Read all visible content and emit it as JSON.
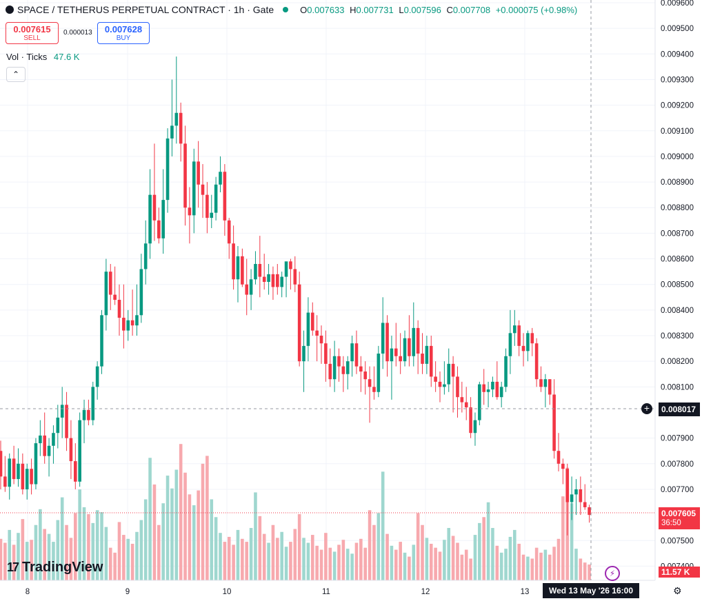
{
  "header": {
    "symbol": "SPACE / TETHERUS PERPETUAL CONTRACT · 1h · Gate",
    "o": "0.007633",
    "h": "0.007731",
    "l": "0.007596",
    "c": "0.007708",
    "change": "+0.000075 (+0.98%)"
  },
  "trade": {
    "sell_price": "0.007615",
    "sell_label": "SELL",
    "spread": "0.000013",
    "buy_price": "0.007628",
    "buy_label": "BUY"
  },
  "volume_indicator": {
    "label": "Vol · Ticks",
    "value": "47.6 K"
  },
  "collapse_icon": "chevron-up-icon",
  "logo_text": "TradingView",
  "crosshair": {
    "price": "0.008017",
    "time": "Wed 13 May '26   16:00"
  },
  "last_price": {
    "price": "0.007605",
    "countdown": "36:50"
  },
  "volume_label": "11.57 K",
  "colors": {
    "up": "#089981",
    "down": "#f23645",
    "vol_up": "#9fd7cf",
    "vol_down": "#f7a9ae"
  },
  "chart_data": {
    "type": "candlestick",
    "timeframe": "1h",
    "y_axis": {
      "min": 0.00735,
      "max": 0.0096,
      "ticks": [
        "0.009600",
        "0.009500",
        "0.009400",
        "0.009300",
        "0.009200",
        "0.009100",
        "0.009000",
        "0.008900",
        "0.008800",
        "0.008700",
        "0.008600",
        "0.008500",
        "0.008400",
        "0.008300",
        "0.008200",
        "0.008100",
        "0.007900",
        "0.007800",
        "0.007700",
        "0.007500",
        "0.007400"
      ]
    },
    "x_axis": {
      "ticks": [
        "8",
        "9",
        "10",
        "11",
        "12",
        "13"
      ]
    },
    "volume_max": 15000,
    "candles": [
      [
        0.00785,
        0.00789,
        0.0077,
        0.00775
      ],
      [
        0.00775,
        0.00783,
        0.00769,
        0.00771
      ],
      [
        0.00771,
        0.00784,
        0.00766,
        0.00782
      ],
      [
        0.00782,
        0.00787,
        0.00772,
        0.00774
      ],
      [
        0.00774,
        0.00786,
        0.00771,
        0.0078
      ],
      [
        0.0078,
        0.00784,
        0.00768,
        0.0077
      ],
      [
        0.0077,
        0.0078,
        0.00766,
        0.00778
      ],
      [
        0.00778,
        0.00782,
        0.00768,
        0.00772
      ],
      [
        0.00772,
        0.0079,
        0.0077,
        0.00788
      ],
      [
        0.00788,
        0.00797,
        0.00783,
        0.00791
      ],
      [
        0.00791,
        0.008,
        0.0078,
        0.00783
      ],
      [
        0.00783,
        0.0079,
        0.00775,
        0.00787
      ],
      [
        0.00787,
        0.00795,
        0.0078,
        0.00792
      ],
      [
        0.00792,
        0.00803,
        0.00786,
        0.00798
      ],
      [
        0.00798,
        0.0081,
        0.0079,
        0.00803
      ],
      [
        0.00803,
        0.00808,
        0.00785,
        0.0079
      ],
      [
        0.0079,
        0.00797,
        0.00774,
        0.00781
      ],
      [
        0.00781,
        0.00788,
        0.0077,
        0.00773
      ],
      [
        0.00773,
        0.008,
        0.00771,
        0.00797
      ],
      [
        0.00797,
        0.00805,
        0.00788,
        0.00801
      ],
      [
        0.00801,
        0.00805,
        0.00795,
        0.00797
      ],
      [
        0.00797,
        0.00812,
        0.00795,
        0.0081
      ],
      [
        0.0081,
        0.0082,
        0.00805,
        0.00818
      ],
      [
        0.00818,
        0.0084,
        0.00815,
        0.00838
      ],
      [
        0.00838,
        0.0086,
        0.00832,
        0.00855
      ],
      [
        0.00855,
        0.00858,
        0.0084,
        0.00846
      ],
      [
        0.00846,
        0.00857,
        0.00842,
        0.00844
      ],
      [
        0.00844,
        0.0085,
        0.0083,
        0.00837
      ],
      [
        0.00837,
        0.0085,
        0.00825,
        0.00832
      ],
      [
        0.00832,
        0.0084,
        0.00828,
        0.00836
      ],
      [
        0.00836,
        0.00848,
        0.0083,
        0.00834
      ],
      [
        0.00834,
        0.0085,
        0.0083,
        0.00838
      ],
      [
        0.00838,
        0.00862,
        0.00835,
        0.00856
      ],
      [
        0.00856,
        0.00875,
        0.0085,
        0.00866
      ],
      [
        0.00866,
        0.00895,
        0.0086,
        0.00885
      ],
      [
        0.00885,
        0.00905,
        0.00867,
        0.00875
      ],
      [
        0.00875,
        0.0088,
        0.00866,
        0.00868
      ],
      [
        0.00868,
        0.00895,
        0.00862,
        0.00883
      ],
      [
        0.00883,
        0.00911,
        0.00878,
        0.00907
      ],
      [
        0.00907,
        0.0093,
        0.009,
        0.00912
      ],
      [
        0.00912,
        0.00939,
        0.00905,
        0.00917
      ],
      [
        0.00917,
        0.00921,
        0.00898,
        0.00905
      ],
      [
        0.00905,
        0.00912,
        0.00873,
        0.0088
      ],
      [
        0.0088,
        0.00888,
        0.00866,
        0.00877
      ],
      [
        0.00877,
        0.00903,
        0.0087,
        0.00898
      ],
      [
        0.00898,
        0.00906,
        0.0088,
        0.00889
      ],
      [
        0.00889,
        0.00897,
        0.00876,
        0.00885
      ],
      [
        0.00885,
        0.0089,
        0.0087,
        0.00876
      ],
      [
        0.00876,
        0.00885,
        0.00872,
        0.00878
      ],
      [
        0.00878,
        0.00892,
        0.00875,
        0.00889
      ],
      [
        0.00889,
        0.009,
        0.00886,
        0.00894
      ],
      [
        0.00894,
        0.00897,
        0.00869,
        0.00875
      ],
      [
        0.00875,
        0.00876,
        0.0086,
        0.00866
      ],
      [
        0.00866,
        0.00873,
        0.00848,
        0.00852
      ],
      [
        0.00852,
        0.00865,
        0.00843,
        0.00861
      ],
      [
        0.00861,
        0.00864,
        0.00849,
        0.0085
      ],
      [
        0.0085,
        0.0086,
        0.00838,
        0.00846
      ],
      [
        0.00846,
        0.00856,
        0.0084,
        0.00852
      ],
      [
        0.00852,
        0.00863,
        0.0085,
        0.00858
      ],
      [
        0.00858,
        0.00869,
        0.00845,
        0.00853
      ],
      [
        0.00853,
        0.00862,
        0.00848,
        0.00851
      ],
      [
        0.00851,
        0.00858,
        0.00846,
        0.00854
      ],
      [
        0.00854,
        0.00857,
        0.00844,
        0.00849
      ],
      [
        0.00854,
        0.00858,
        0.00846,
        0.00849
      ],
      [
        0.00849,
        0.00855,
        0.00845,
        0.00853
      ],
      [
        0.00853,
        0.00858,
        0.00845,
        0.00859
      ],
      [
        0.00859,
        0.0086,
        0.00848,
        0.00856
      ],
      [
        0.00856,
        0.00861,
        0.00847,
        0.0085
      ],
      [
        0.0085,
        0.00855,
        0.00818,
        0.0082
      ],
      [
        0.0082,
        0.00832,
        0.00808,
        0.00826
      ],
      [
        0.00826,
        0.00845,
        0.0082,
        0.00839
      ],
      [
        0.00839,
        0.00843,
        0.0083,
        0.00832
      ],
      [
        0.00832,
        0.00838,
        0.0082,
        0.0083
      ],
      [
        0.0083,
        0.00834,
        0.00819,
        0.00827
      ],
      [
        0.00827,
        0.00832,
        0.00812,
        0.00819
      ],
      [
        0.00819,
        0.00825,
        0.0081,
        0.00813
      ],
      [
        0.00813,
        0.00828,
        0.00808,
        0.00822
      ],
      [
        0.00822,
        0.00825,
        0.00812,
        0.00818
      ],
      [
        0.00818,
        0.00822,
        0.00808,
        0.00815
      ],
      [
        0.00815,
        0.00822,
        0.00809,
        0.0082
      ],
      [
        0.0082,
        0.0083,
        0.00814,
        0.00827
      ],
      [
        0.00827,
        0.00832,
        0.00815,
        0.00818
      ],
      [
        0.00818,
        0.00822,
        0.00808,
        0.00816
      ],
      [
        0.00816,
        0.0082,
        0.00807,
        0.00813
      ],
      [
        0.00813,
        0.00818,
        0.00796,
        0.0081
      ],
      [
        0.0081,
        0.00818,
        0.00805,
        0.00808
      ],
      [
        0.00808,
        0.00826,
        0.00806,
        0.00823
      ],
      [
        0.00823,
        0.00845,
        0.00817,
        0.00835
      ],
      [
        0.00835,
        0.00838,
        0.00814,
        0.0082
      ],
      [
        0.0082,
        0.0083,
        0.00805,
        0.00825
      ],
      [
        0.00825,
        0.00835,
        0.00818,
        0.00822
      ],
      [
        0.00822,
        0.00831,
        0.00815,
        0.0082
      ],
      [
        0.0082,
        0.00832,
        0.00818,
        0.00829
      ],
      [
        0.00829,
        0.00838,
        0.00818,
        0.00822
      ],
      [
        0.00822,
        0.00843,
        0.00818,
        0.00833
      ],
      [
        0.00833,
        0.00836,
        0.00815,
        0.00823
      ],
      [
        0.00823,
        0.00831,
        0.00815,
        0.00819
      ],
      [
        0.00819,
        0.0083,
        0.00815,
        0.00826
      ],
      [
        0.00826,
        0.0083,
        0.0081,
        0.00814
      ],
      [
        0.00814,
        0.0082,
        0.00808,
        0.00812
      ],
      [
        0.00812,
        0.00816,
        0.00804,
        0.0081
      ],
      [
        0.0081,
        0.0082,
        0.00807,
        0.00811
      ],
      [
        0.00811,
        0.00825,
        0.00808,
        0.00819
      ],
      [
        0.00819,
        0.00822,
        0.008,
        0.00814
      ],
      [
        0.00814,
        0.00818,
        0.00798,
        0.00806
      ],
      [
        0.00806,
        0.00812,
        0.008,
        0.00804
      ],
      [
        0.00804,
        0.0081,
        0.00797,
        0.00802
      ],
      [
        0.00802,
        0.00806,
        0.0079,
        0.00792
      ],
      [
        0.00792,
        0.008,
        0.00787,
        0.00797
      ],
      [
        0.00797,
        0.00812,
        0.00795,
        0.00811
      ],
      [
        0.00811,
        0.00817,
        0.00803,
        0.00808
      ],
      [
        0.00808,
        0.00812,
        0.00802,
        0.00809
      ],
      [
        0.00809,
        0.00814,
        0.00806,
        0.00812
      ],
      [
        0.00812,
        0.0082,
        0.00805,
        0.00806
      ],
      [
        0.00806,
        0.00812,
        0.00802,
        0.0081
      ],
      [
        0.0081,
        0.00825,
        0.00808,
        0.00822
      ],
      [
        0.00822,
        0.0084,
        0.00815,
        0.00831
      ],
      [
        0.00831,
        0.0084,
        0.00826,
        0.00834
      ],
      [
        0.00834,
        0.00836,
        0.00822,
        0.00826
      ],
      [
        0.00826,
        0.00831,
        0.00818,
        0.00824
      ],
      [
        0.00824,
        0.00832,
        0.0082,
        0.00831
      ],
      [
        0.00831,
        0.00833,
        0.00822,
        0.00827
      ],
      [
        0.00827,
        0.00829,
        0.0081,
        0.00813
      ],
      [
        0.00813,
        0.00818,
        0.00808,
        0.0081
      ],
      [
        0.0081,
        0.00815,
        0.00802,
        0.00813
      ],
      [
        0.00813,
        0.00813,
        0.00803,
        0.00807
      ],
      [
        0.00807,
        0.00813,
        0.00782,
        0.00785
      ],
      [
        0.00785,
        0.00792,
        0.00777,
        0.0078
      ],
      [
        0.0078,
        0.00782,
        0.00772,
        0.00778
      ],
      [
        0.00778,
        0.0078,
        0.00752,
        0.00765
      ],
      [
        0.00765,
        0.00775,
        0.00758,
        0.00768
      ],
      [
        0.00768,
        0.00774,
        0.0076,
        0.0077
      ],
      [
        0.0077,
        0.00775,
        0.0076,
        0.00765
      ],
      [
        0.00765,
        0.00772,
        0.00762,
        0.00763
      ],
      [
        0.00763,
        0.00764,
        0.00757,
        0.0076
      ]
    ],
    "volumes": [
      4200,
      3800,
      5100,
      3600,
      4800,
      6200,
      3900,
      4100,
      5600,
      7200,
      5200,
      4700,
      3900,
      6100,
      8400,
      5600,
      4300,
      6800,
      9200,
      7400,
      6700,
      5800,
      7100,
      6900,
      5400,
      3300,
      2800,
      5900,
      4600,
      4200,
      3700,
      4900,
      6100,
      8200,
      12400,
      9700,
      5600,
      7800,
      10600,
      9300,
      11200,
      13800,
      10900,
      8700,
      7600,
      9100,
      11800,
      12600,
      8200,
      6400,
      4800,
      3900,
      4400,
      3600,
      5100,
      4200,
      3900,
      5300,
      8900,
      6500,
      4700,
      3800,
      5600,
      4300,
      4900,
      3400,
      3900,
      5200,
      6700,
      4300,
      3800,
      4600,
      3500,
      3100,
      4800,
      3300,
      2900,
      3600,
      4100,
      3200,
      2700,
      3800,
      4200,
      3300,
      7100,
      5600,
      6800,
      11000,
      4700,
      3500,
      3100,
      3900,
      2800,
      2400,
      3600,
      6800,
      5600,
      4300,
      3700,
      3300,
      2900,
      4100,
      5300,
      4500,
      3800,
      2600,
      3100,
      2200,
      4600,
      5800,
      6400,
      7900,
      5300,
      3500,
      2800,
      3200,
      4400,
      5100,
      3700,
      2600,
      2400,
      2200,
      3300,
      2800,
      3100,
      2600,
      3400,
      4200,
      8500,
      11400,
      7800,
      3200,
      2200,
      1800,
      1600,
      2300
    ]
  }
}
